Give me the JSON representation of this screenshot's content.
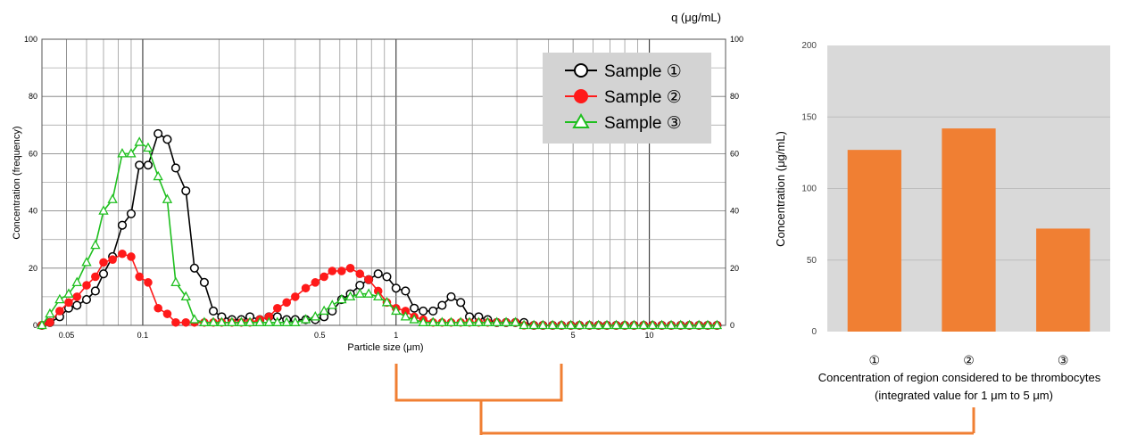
{
  "chart_data": [
    {
      "type": "line",
      "xscale": "log",
      "xlim": [
        0.04,
        20
      ],
      "ylim": [
        0,
        100
      ],
      "xlabel": "Particle size (μm)",
      "ylabel": "Concentration (frequency)",
      "x_tick_labels": [
        "0.05",
        "0.1",
        "0.5",
        "1",
        "5",
        "10"
      ],
      "y_tick_labels": [
        "0",
        "20",
        "40",
        "60",
        "80",
        "100"
      ],
      "grid": true,
      "legend_position": "top-right",
      "series": [
        {
          "name": "Sample ①",
          "color": "#000000",
          "marker": "open-circle",
          "x": [
            0.04,
            0.043,
            0.047,
            0.051,
            0.055,
            0.06,
            0.065,
            0.07,
            0.076,
            0.083,
            0.09,
            0.097,
            0.105,
            0.115,
            0.125,
            0.135,
            0.148,
            0.16,
            0.175,
            0.19,
            0.205,
            0.225,
            0.245,
            0.265,
            0.29,
            0.315,
            0.34,
            0.37,
            0.4,
            0.44,
            0.48,
            0.52,
            0.56,
            0.61,
            0.66,
            0.72,
            0.78,
            0.85,
            0.92,
            1.0,
            1.09,
            1.18,
            1.28,
            1.4,
            1.52,
            1.65,
            1.8,
            1.95,
            2.12,
            2.3,
            2.5,
            2.72,
            2.96,
            3.2,
            3.5,
            3.8,
            4.15,
            4.5,
            4.9,
            5.3,
            5.8,
            6.3,
            6.8,
            7.4,
            8.0,
            8.7,
            9.5,
            10.3,
            11.2,
            12.2,
            13.3,
            14.4,
            15.7,
            17.0,
            18.5
          ],
          "y": [
            0,
            1,
            3,
            6,
            7,
            9,
            12,
            18,
            24,
            35,
            39,
            56,
            56,
            67,
            65,
            55,
            47,
            20,
            15,
            5,
            3,
            2,
            2,
            3,
            2,
            3,
            3,
            2,
            2,
            2,
            2,
            3,
            5,
            9,
            11,
            14,
            16,
            18,
            17,
            13,
            12,
            6,
            5,
            5,
            7,
            10,
            8,
            3,
            3,
            2,
            1,
            1,
            1,
            1,
            0,
            0,
            0,
            0,
            0,
            0,
            0,
            0,
            0,
            0,
            0,
            0,
            0,
            0,
            0,
            0,
            0,
            0,
            0,
            0,
            0
          ]
        },
        {
          "name": "Sample ②",
          "color": "#ff1a1a",
          "marker": "filled-circle",
          "x": [
            0.04,
            0.043,
            0.047,
            0.051,
            0.055,
            0.06,
            0.065,
            0.07,
            0.076,
            0.083,
            0.09,
            0.097,
            0.105,
            0.115,
            0.125,
            0.135,
            0.148,
            0.16,
            0.175,
            0.19,
            0.205,
            0.225,
            0.245,
            0.265,
            0.29,
            0.315,
            0.34,
            0.37,
            0.4,
            0.44,
            0.48,
            0.52,
            0.56,
            0.61,
            0.66,
            0.72,
            0.78,
            0.85,
            0.92,
            1.0,
            1.09,
            1.18,
            1.28,
            1.4,
            1.52,
            1.65,
            1.8,
            1.95,
            2.12,
            2.3,
            2.5,
            2.72,
            2.96,
            3.2,
            3.5,
            3.8,
            4.15,
            4.5,
            4.9,
            5.3,
            5.8,
            6.3,
            6.8,
            7.4,
            8.0,
            8.7,
            9.5,
            10.3,
            11.2,
            12.2,
            13.3,
            14.4,
            15.7,
            17.0,
            18.5
          ],
          "y": [
            0,
            1,
            5,
            8,
            10,
            14,
            17,
            22,
            23,
            25,
            24,
            17,
            15,
            6,
            4,
            1,
            1,
            1,
            1,
            1,
            1,
            1,
            1,
            1,
            2,
            3,
            6,
            8,
            10,
            13,
            15,
            17,
            19,
            19,
            20,
            18,
            16,
            12,
            8,
            6,
            5,
            3,
            2,
            1,
            1,
            1,
            1,
            1,
            1,
            1,
            1,
            1,
            1,
            0,
            0,
            0,
            0,
            0,
            0,
            0,
            0,
            0,
            0,
            0,
            0,
            0,
            0,
            0,
            0,
            0,
            0,
            0,
            0,
            0,
            0
          ]
        },
        {
          "name": "Sample ③",
          "color": "#1fbf1f",
          "marker": "open-triangle",
          "x": [
            0.04,
            0.043,
            0.047,
            0.051,
            0.055,
            0.06,
            0.065,
            0.07,
            0.076,
            0.083,
            0.09,
            0.097,
            0.105,
            0.115,
            0.125,
            0.135,
            0.148,
            0.16,
            0.175,
            0.19,
            0.205,
            0.225,
            0.245,
            0.265,
            0.29,
            0.315,
            0.34,
            0.37,
            0.4,
            0.44,
            0.48,
            0.52,
            0.56,
            0.61,
            0.66,
            0.72,
            0.78,
            0.85,
            0.92,
            1.0,
            1.09,
            1.18,
            1.28,
            1.4,
            1.52,
            1.65,
            1.8,
            1.95,
            2.12,
            2.3,
            2.5,
            2.72,
            2.96,
            3.2,
            3.5,
            3.8,
            4.15,
            4.5,
            4.9,
            5.3,
            5.8,
            6.3,
            6.8,
            7.4,
            8.0,
            8.7,
            9.5,
            10.3,
            11.2,
            12.2,
            13.3,
            14.4,
            15.7,
            17.0,
            18.5
          ],
          "y": [
            0,
            4,
            9,
            11,
            15,
            22,
            28,
            40,
            44,
            60,
            60,
            64,
            62,
            52,
            44,
            15,
            10,
            2,
            1,
            1,
            1,
            1,
            1,
            1,
            1,
            1,
            1,
            1,
            1,
            2,
            3,
            5,
            7,
            9,
            10,
            11,
            11,
            10,
            8,
            5,
            3,
            2,
            1,
            1,
            1,
            1,
            1,
            1,
            1,
            1,
            1,
            1,
            1,
            0,
            0,
            0,
            0,
            0,
            0,
            0,
            0,
            0,
            0,
            0,
            0,
            0,
            0,
            0,
            0,
            0,
            0,
            0,
            0,
            0,
            0
          ]
        }
      ],
      "y2_label": "q (μg/mL)",
      "y2_tick_labels": [
        "0",
        "20",
        "40",
        "60",
        "80",
        "100"
      ]
    },
    {
      "type": "bar",
      "categories": [
        "①",
        "②",
        "③"
      ],
      "values": [
        127,
        142,
        72
      ],
      "ylabel": "Concentration (μg/mL)",
      "ylim": [
        0,
        200
      ],
      "y_tick_labels": [
        "0",
        "50",
        "100",
        "150",
        "200"
      ],
      "bar_color": "#f07f33",
      "background": "#d9d9d9",
      "xlabel_line1": "Concentration of region considered to be thrombocytes",
      "xlabel_line2": "(integrated value for 1 μm to 5 μm)"
    }
  ],
  "bracket_color": "#f07f33"
}
